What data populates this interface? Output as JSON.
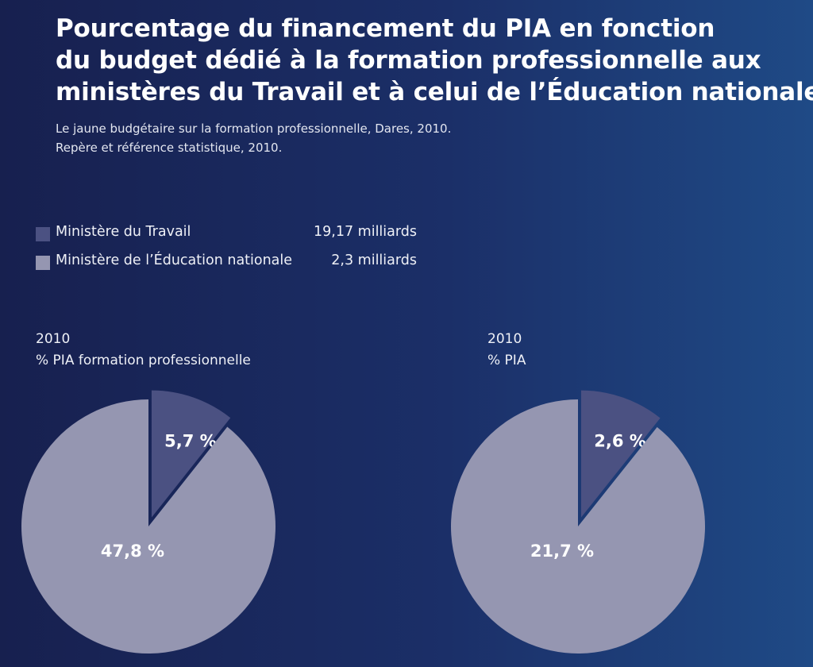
{
  "title_lines": [
    "Pourcentage du financement du PIA en fonction",
    "du budget dédié à la formation professionnelle aux",
    "ministères du Travail et à celui de l’Éducation nationale"
  ],
  "source_lines": [
    "Le jaune budgétaire sur la formation professionnelle, Dares, 2010.",
    "Repère et référence statistique, 2010."
  ],
  "legend": [
    {
      "name": "Ministère du Travail",
      "value": "19,17 milliards",
      "color": "#4b5182"
    },
    {
      "name": "Ministère de l’Éducation nationale",
      "value": "2,3 milliards",
      "color": "#9596b1"
    }
  ],
  "chart_data": [
    {
      "type": "pie",
      "title_lines": [
        "2010",
        "% PIA formation professionnelle"
      ],
      "slices": [
        {
          "label": "5,7 %",
          "value": 5.7,
          "color": "#4b5182",
          "exploded": true
        },
        {
          "label": "47,8 %",
          "value": 47.8,
          "color": "#9596b1",
          "exploded": false
        }
      ]
    },
    {
      "type": "pie",
      "title_lines": [
        "2010",
        "% PIA"
      ],
      "slices": [
        {
          "label": "2,6 %",
          "value": 2.6,
          "color": "#4b5182",
          "exploded": true
        },
        {
          "label": "21,7 %",
          "value": 21.7,
          "color": "#9596b1",
          "exploded": false
        }
      ]
    }
  ]
}
